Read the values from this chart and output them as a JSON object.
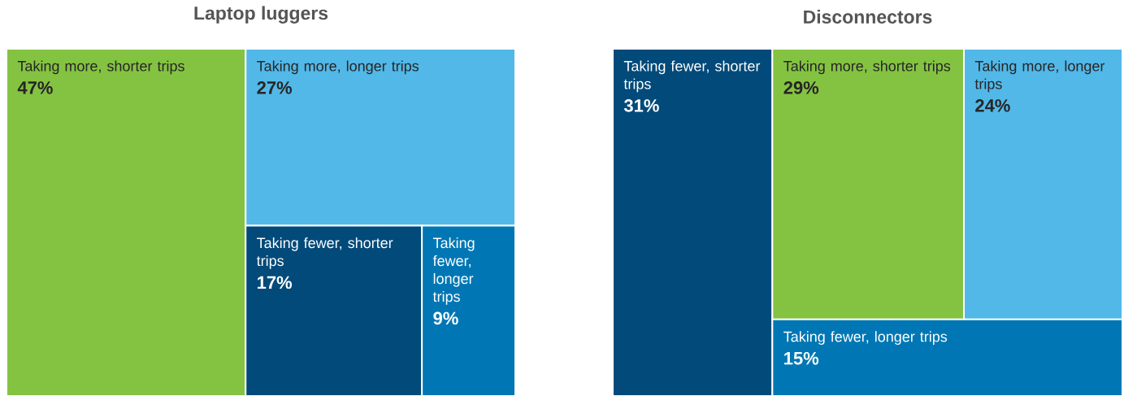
{
  "chart_data": [
    {
      "type": "other",
      "title": "Laptop luggers",
      "categories": [
        "Taking more, shorter trips",
        "Taking more, longer trips",
        "Taking fewer, shorter trips",
        "Taking fewer, longer trips"
      ],
      "values": [
        47,
        27,
        17,
        9
      ],
      "value_labels": [
        "47%",
        "27%",
        "17%",
        "9%"
      ],
      "colors": [
        "#84c341",
        "#52b8e8",
        "#024a7a",
        "#0077b4"
      ]
    },
    {
      "type": "other",
      "title": "Disconnectors",
      "categories": [
        "Taking fewer, shorter trips",
        "Taking more, shorter trips",
        "Taking more, longer trips",
        "Taking fewer, longer trips"
      ],
      "values": [
        31,
        29,
        24,
        15
      ],
      "value_labels": [
        "31%",
        "29%",
        "24%",
        "15%"
      ],
      "colors": [
        "#024a7a",
        "#84c341",
        "#52b8e8",
        "#0077b4"
      ]
    }
  ]
}
